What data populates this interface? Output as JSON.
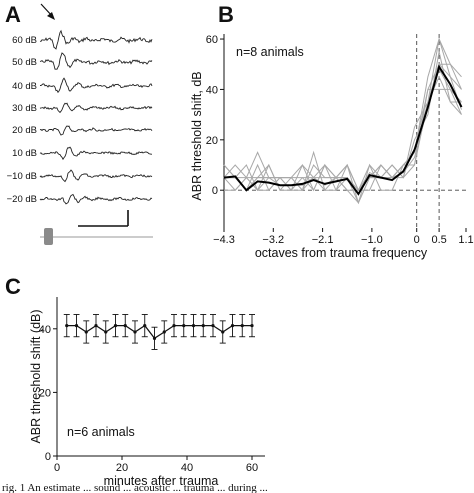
{
  "panels": {
    "a": "A",
    "b": "B",
    "c": "C"
  },
  "caption_fragment": "rig. 1   An estimate ... sound ... acoustic ... trauma ... during ... ",
  "chart_data": [
    {
      "panel": "A",
      "type": "line",
      "trace_labels": [
        "60 dB",
        "50 dB",
        "40 dB",
        "30 dB",
        "20 dB",
        "10 dB",
        "−10 dB",
        "−20 dB"
      ],
      "arrow_marker": true,
      "scale_bar": true
    },
    {
      "panel": "B",
      "type": "line",
      "ylabel": "ABR threshold shift, dB",
      "xlabel": "octaves from trauma frequency",
      "x_ticks": [
        "−4.3",
        "−3.2",
        "−2.1",
        "−1.0",
        "0",
        "0.5",
        "1.1"
      ],
      "y_ticks": [
        0,
        20,
        40,
        60
      ],
      "xlim": [
        -4.3,
        1.1
      ],
      "ylim": [
        -15,
        62
      ],
      "annotation": "n=8 animals",
      "vlines_dashed": [
        0,
        0.5
      ],
      "hline_dashed": 0,
      "x": [
        -4.3,
        -4.05,
        -3.8,
        -3.55,
        -3.3,
        -3.05,
        -2.8,
        -2.55,
        -2.3,
        -2.05,
        -1.8,
        -1.55,
        -1.3,
        -1.05,
        -0.8,
        -0.55,
        -0.3,
        -0.05,
        0.25,
        0.5,
        0.75,
        1.0
      ],
      "series": [
        {
          "values": [
            5,
            5,
            0,
            5,
            5,
            2,
            2,
            2,
            5,
            2,
            5,
            5,
            0,
            7,
            5,
            5,
            7,
            13,
            33,
            48,
            40,
            30
          ]
        },
        {
          "values": [
            5,
            5,
            0,
            5,
            5,
            5,
            0,
            0,
            15,
            0,
            0,
            10,
            0,
            5,
            10,
            5,
            10,
            10,
            35,
            60,
            45,
            32
          ]
        },
        {
          "values": [
            10,
            5,
            10,
            0,
            0,
            5,
            5,
            10,
            0,
            10,
            5,
            10,
            -5,
            5,
            10,
            5,
            5,
            20,
            30,
            55,
            35,
            30
          ]
        },
        {
          "values": [
            0,
            0,
            5,
            15,
            5,
            5,
            5,
            0,
            5,
            10,
            5,
            0,
            -5,
            10,
            0,
            0,
            10,
            15,
            40,
            40,
            40,
            35
          ]
        },
        {
          "values": [
            5,
            10,
            5,
            0,
            10,
            0,
            5,
            5,
            0,
            10,
            0,
            5,
            0,
            10,
            5,
            10,
            5,
            10,
            40,
            50,
            50,
            40
          ]
        },
        {
          "values": [
            5,
            5,
            0,
            10,
            0,
            5,
            5,
            0,
            10,
            5,
            5,
            0,
            0,
            5,
            5,
            10,
            5,
            25,
            35,
            45,
            35,
            35
          ]
        },
        {
          "values": [
            10,
            5,
            5,
            5,
            10,
            0,
            0,
            5,
            5,
            0,
            5,
            5,
            -5,
            5,
            5,
            5,
            10,
            15,
            45,
            60,
            50,
            45
          ]
        },
        {
          "values": [
            5,
            0,
            5,
            0,
            5,
            5,
            0,
            10,
            5,
            5,
            5,
            10,
            0,
            0,
            10,
            5,
            10,
            15,
            35,
            50,
            45,
            40
          ]
        },
        {
          "values": [
            5,
            5.5,
            0,
            3.5,
            3,
            2,
            2,
            2.5,
            4,
            2.5,
            3.5,
            4.5,
            -1.5,
            6,
            5,
            4,
            7.5,
            16,
            33,
            49,
            42,
            33
          ],
          "mean": true
        }
      ]
    },
    {
      "panel": "C",
      "type": "line",
      "ylabel": "ABR threshold shift (dB)",
      "xlabel": "minutes after trauma",
      "x_ticks": [
        0,
        20,
        40,
        60
      ],
      "y_ticks": [
        0,
        20,
        40
      ],
      "xlim": [
        0,
        64
      ],
      "ylim": [
        0,
        50
      ],
      "annotation": "n=6 animals",
      "x": [
        3,
        6,
        9,
        12,
        15,
        18,
        21,
        24,
        27,
        30,
        33,
        36,
        39,
        42,
        45,
        48,
        51,
        54,
        57,
        60
      ],
      "values": [
        41,
        41,
        39,
        41,
        39,
        41,
        41,
        39,
        41,
        37,
        39,
        41,
        41,
        41,
        41,
        41,
        39,
        41,
        41,
        41
      ],
      "error": [
        3.5,
        3.5,
        3.5,
        3.5,
        3.5,
        3.5,
        3.5,
        3.5,
        3.5,
        3.5,
        3.5,
        3.5,
        3.5,
        3.5,
        3.5,
        3.5,
        3.5,
        3.5,
        3.5,
        3.5
      ]
    }
  ]
}
